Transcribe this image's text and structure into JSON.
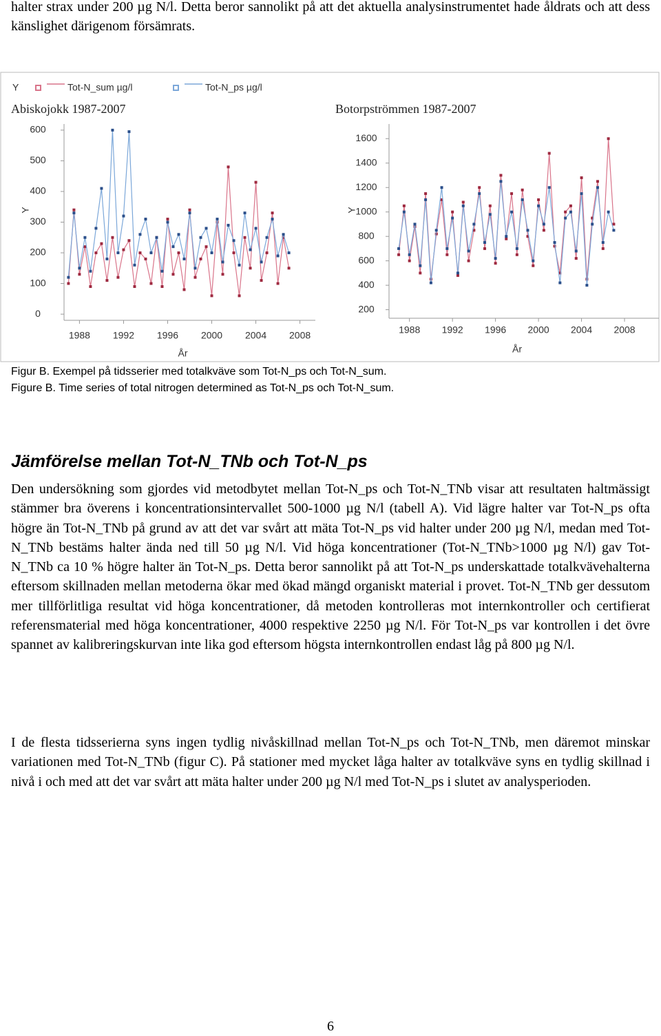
{
  "intro": "halter strax under 200 µg N/l. Detta beror sannolikt på att det aktuella analysinstrumentet hade åldrats och att dess känslighet därigenom försämrats.",
  "chart_data": [
    {
      "type": "line",
      "title": "Abiskojokk 1987-2007",
      "legend_title": "Y",
      "ylabel": "Y",
      "xlabel": "År",
      "x": [
        1987,
        1987.5,
        1988,
        1988.5,
        1989,
        1989.5,
        1990,
        1990.5,
        1991,
        1991.5,
        1992,
        1992.5,
        1993,
        1993.5,
        1994,
        1994.5,
        1995,
        1995.5,
        1996,
        1996.5,
        1997,
        1997.5,
        1998,
        1998.5,
        1999,
        1999.5,
        2000,
        2000.5,
        2001,
        2001.5,
        2002,
        2002.5,
        2003,
        2003.5,
        2004,
        2004.5,
        2005,
        2005.5,
        2006,
        2006.5,
        2007
      ],
      "xlim": [
        1986.6,
        2009.4
      ],
      "xticks": [
        1988,
        1992,
        1996,
        2000,
        2004,
        2008
      ],
      "ylim": [
        -20,
        620
      ],
      "yticks": [
        0,
        100,
        200,
        300,
        400,
        500,
        600
      ],
      "series": [
        {
          "name": "Tot-N_sum µg/l",
          "color": "#d9748a",
          "marker_color": "#9e2a40",
          "values": [
            100,
            340,
            130,
            220,
            90,
            200,
            230,
            110,
            250,
            120,
            210,
            240,
            90,
            200,
            180,
            100,
            250,
            90,
            310,
            130,
            200,
            80,
            340,
            120,
            180,
            220,
            60,
            300,
            130,
            480,
            200,
            60,
            250,
            150,
            430,
            110,
            200,
            330,
            100,
            250,
            150
          ]
        },
        {
          "name": "Tot-N_ps µg/l",
          "color": "#7ba7d9",
          "marker_color": "#2b4f8a",
          "values": [
            120,
            330,
            150,
            250,
            140,
            280,
            410,
            180,
            600,
            200,
            320,
            595,
            160,
            260,
            310,
            200,
            250,
            140,
            300,
            220,
            260,
            180,
            330,
            150,
            250,
            280,
            200,
            310,
            170,
            290,
            240,
            160,
            330,
            210,
            280,
            170,
            250,
            310,
            190,
            260,
            200
          ]
        }
      ]
    },
    {
      "type": "line",
      "title": "Botorpströmmen 1987-2007",
      "ylabel": "Y",
      "xlabel": "År",
      "x": [
        1987,
        1987.5,
        1988,
        1988.5,
        1989,
        1989.5,
        1990,
        1990.5,
        1991,
        1991.5,
        1992,
        1992.5,
        1993,
        1993.5,
        1994,
        1994.5,
        1995,
        1995.5,
        1996,
        1996.5,
        1997,
        1997.5,
        1998,
        1998.5,
        1999,
        1999.5,
        2000,
        2000.5,
        2001,
        2001.5,
        2002,
        2002.5,
        2003,
        2003.5,
        2004,
        2004.5,
        2005,
        2005.5,
        2006,
        2006.5,
        2007
      ],
      "xlim": [
        1986.1,
        2011.2
      ],
      "xticks": [
        1988,
        1992,
        1996,
        2000,
        2004,
        2008
      ],
      "ylim": [
        130,
        1720
      ],
      "yticks": [
        200,
        400,
        600,
        800,
        1000,
        1200,
        1400,
        1600
      ],
      "series": [
        {
          "color": "#d9748a",
          "marker_color": "#9e2a40",
          "values": [
            650,
            1050,
            600,
            880,
            500,
            1150,
            450,
            820,
            1100,
            650,
            1000,
            480,
            1080,
            600,
            850,
            1200,
            700,
            1050,
            580,
            1300,
            780,
            1150,
            650,
            1180,
            800,
            560,
            1100,
            850,
            1480,
            720,
            500,
            1000,
            1050,
            620,
            1280,
            450,
            950,
            1250,
            700,
            1600,
            900
          ]
        },
        {
          "color": "#7ba7d9",
          "marker_color": "#2b4f8a",
          "values": [
            700,
            1000,
            650,
            900,
            560,
            1100,
            420,
            850,
            1200,
            700,
            950,
            500,
            1050,
            680,
            900,
            1150,
            750,
            980,
            620,
            1250,
            800,
            1000,
            700,
            1100,
            850,
            600,
            1050,
            900,
            1200,
            750,
            420,
            950,
            1000,
            680,
            1150,
            400,
            900,
            1200,
            750,
            1000,
            850
          ]
        }
      ]
    }
  ],
  "captions": [
    "Figur B. Exempel på tidsserier med totalkväve som Tot-N_ps och Tot-N_sum.",
    "Figure B. Time series of total nitrogen determined as Tot-N_ps och Tot-N_sum."
  ],
  "heading": "Jämförelse mellan Tot-N_TNb och Tot-N_ps",
  "paragraphs": [
    "Den undersökning som gjordes vid metodbytet mellan Tot-N_ps och Tot-N_TNb visar att resultaten haltmässigt stämmer bra överens i koncentrationsintervallet 500-1000 µg N/l (tabell A). Vid lägre halter var Tot-N_ps ofta högre än Tot-N_TNb på grund av att det var svårt att mäta Tot-N_ps vid halter under 200 µg N/l, medan med Tot-N_TNb bestäms halter ända ned till 50 µg N/l. Vid höga koncentrationer (Tot-N_TNb>1000 µg N/l) gav Tot-N_TNb ca 10 % högre halter än Tot-N_ps. Detta beror sannolikt på att Tot-N_ps underskattade totalkvävehalterna eftersom skillnaden mellan metoderna ökar med ökad mängd organiskt material i provet. Tot-N_TNb ger dessutom mer tillförlitliga resultat vid höga koncentrationer, då metoden kontrolleras mot internkontroller och certifierat referensmaterial med höga koncentrationer, 4000 respektive 2250 µg N/l. För Tot-N_ps var kontrollen i det övre spannet av kalibreringskurvan inte lika god eftersom högsta internkontrollen endast låg på 800 µg N/l.",
    "I de flesta tidsserierna syns ingen tydlig nivåskillnad mellan Tot-N_ps och Tot-N_TNb, men däremot minskar variationen med Tot-N_TNb (figur C). På stationer med mycket låga halter av totalkväve syns en tydlig skillnad i nivå i och med att det var svårt att mäta halter under 200 µg N/l med Tot-N_ps i slutet av analysperioden."
  ],
  "page_number": "6"
}
